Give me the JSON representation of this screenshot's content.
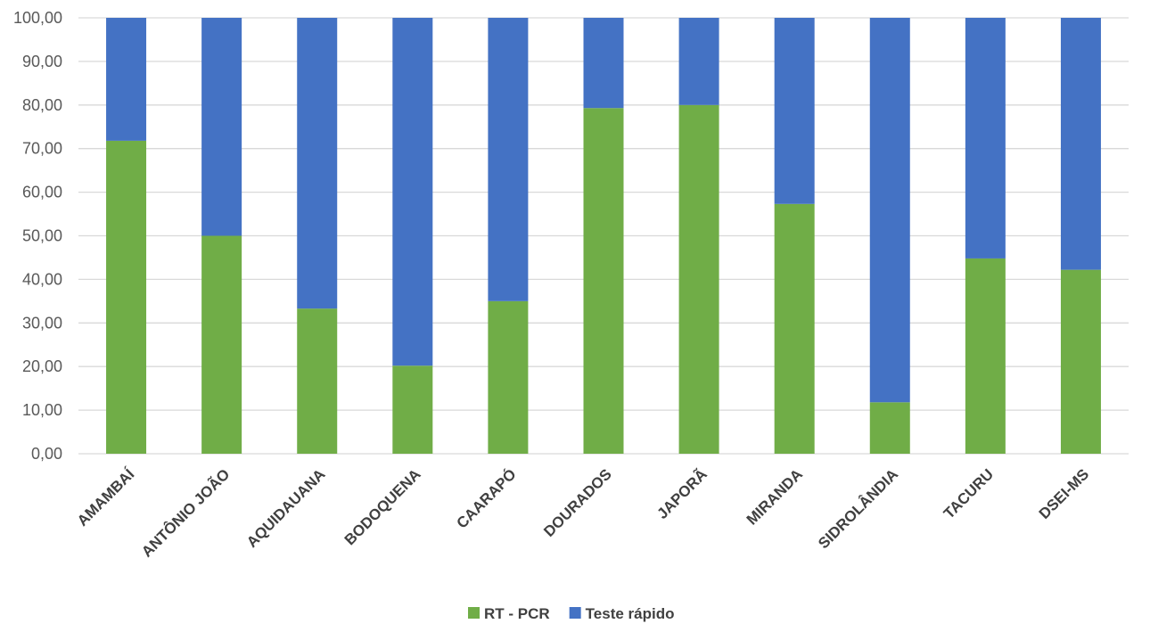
{
  "chart_data": {
    "type": "bar",
    "stacked": true,
    "percent_stacked": true,
    "categories": [
      "AMAMBAÍ",
      "ANTÔNIO JOÃO",
      "AQUIDAUANA",
      "BODOQUENA",
      "CAARAPÓ",
      "DOURADOS",
      "JAPORÃ",
      "MIRANDA",
      "SIDROLÂNDIA",
      "TACURU",
      "DSEI-MS"
    ],
    "series": [
      {
        "name": "RT - PCR",
        "color": "#70ad47",
        "values": [
          71.8,
          50.0,
          33.3,
          20.2,
          35.0,
          79.3,
          80.0,
          57.3,
          11.8,
          44.8,
          42.2
        ]
      },
      {
        "name": "Teste rápido",
        "color": "#4472c4",
        "values": [
          28.2,
          50.0,
          66.7,
          79.8,
          65.0,
          20.7,
          20.0,
          42.7,
          88.2,
          55.2,
          57.8
        ]
      }
    ],
    "ylim": [
      0,
      100
    ],
    "yticks": [
      "0,00",
      "10,00",
      "20,00",
      "30,00",
      "40,00",
      "50,00",
      "60,00",
      "70,00",
      "80,00",
      "90,00",
      "100,00"
    ],
    "grid": true,
    "legend_position": "bottom",
    "title": "",
    "xlabel": "",
    "ylabel": ""
  }
}
